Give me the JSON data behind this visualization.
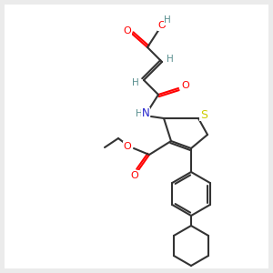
{
  "bg_color": "#ebebeb",
  "bond_color": "#333333",
  "colors": {
    "O": "#ff0000",
    "N": "#2222cc",
    "S": "#cccc00",
    "H": "#5a9090",
    "C": "#333333"
  },
  "figsize": [
    3.0,
    3.0
  ],
  "dpi": 100
}
